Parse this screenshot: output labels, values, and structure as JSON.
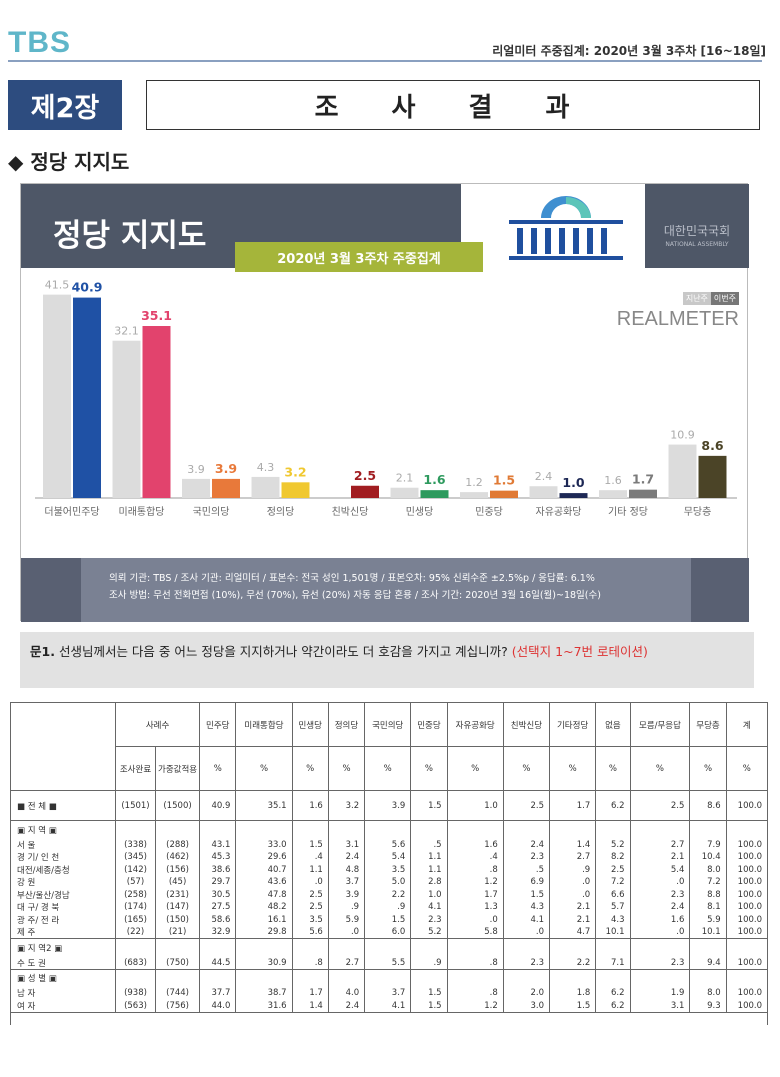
{
  "header": {
    "logo": "TBS",
    "survey_info": "리얼미터 주중집계: 2020년 3월 3주차 [16~18일]"
  },
  "chapter": {
    "number": "제2장",
    "title": "조 사 결 과"
  },
  "section_title": "◆ 정당 지지도",
  "panel": {
    "title": "정당 지지도",
    "subtitle": "2020년 3월 3주차 주중집계",
    "assembly_name": "대한민국국회",
    "assembly_name_en": "NATIONAL ASSEMBLY",
    "legend_prev": "지난주",
    "legend_curr": "이번주",
    "brand": "REALMETER",
    "footer_line1": "의뢰 기관: TBS / 조사 기관: 리얼미터 / 표본수: 전국 성인 1,501명 / 표본오차: 95% 신뢰수준 ±2.5%p / 응답률: 6.1%",
    "footer_line2": "조사 방법: 무선 전화면접 (10%), 무선 (70%), 유선 (20%) 자동 응답 혼용 / 조사 기간: 2020년 3월 16일(월)~18일(수)"
  },
  "chart_data": {
    "type": "bar",
    "categories": [
      "더불어민주당",
      "미래통합당",
      "국민의당",
      "정의당",
      "친박신당",
      "민생당",
      "민중당",
      "자유공화당",
      "기타 정당",
      "무당층"
    ],
    "series": [
      {
        "name": "지난주",
        "values": [
          41.5,
          32.1,
          3.9,
          4.3,
          null,
          2.1,
          1.2,
          2.4,
          1.6,
          10.9
        ]
      },
      {
        "name": "이번주",
        "values": [
          40.9,
          35.1,
          3.9,
          3.2,
          2.5,
          1.6,
          1.5,
          1.0,
          1.7,
          8.6
        ]
      }
    ],
    "colors": [
      "#1f51a5",
      "#e2436d",
      "#e8793a",
      "#f0c830",
      "#a11d21",
      "#2e9a5e",
      "#e07a35",
      "#1d2855",
      "#7a7a7a",
      "#4b4427"
    ],
    "ylim": [
      0,
      45
    ]
  },
  "question": {
    "prefix": "문1.",
    "text": "선생님께서는 다음 중 어느 정당을 지지하거나 약간이라도 더 호감을 가지고 계십니까?",
    "note": "(선택지 1~7번 로테이션)"
  },
  "table": {
    "header_sample": "사례수",
    "header_sample_sub": [
      "조사완료",
      "가중값적용"
    ],
    "columns": [
      "민주당",
      "미래통합당",
      "민생당",
      "정의당",
      "국민의당",
      "민중당",
      "자유공화당",
      "친박신당",
      "기타정당",
      "없음",
      "모름/무응답",
      "무당층",
      "계"
    ],
    "unit": "%",
    "groups": [
      {
        "title": "■ 전 체 ■",
        "rows": [
          {
            "label": "",
            "n": [
              "(1501)",
              "(1500)"
            ],
            "v": [
              "40.9",
              "35.1",
              "1.6",
              "3.2",
              "3.9",
              "1.5",
              "1.0",
              "2.5",
              "1.7",
              "6.2",
              "2.5",
              "8.6",
              "100.0"
            ]
          }
        ],
        "total": true
      },
      {
        "title": "▣ 지 역 ▣",
        "rows": [
          {
            "label": "서 울",
            "n": [
              "(338)",
              "(288)"
            ],
            "v": [
              "43.1",
              "33.0",
              "1.5",
              "3.1",
              "5.6",
              ".5",
              "1.6",
              "2.4",
              "1.4",
              "5.2",
              "2.7",
              "7.9",
              "100.0"
            ]
          },
          {
            "label": "경 기/ 인 천",
            "n": [
              "(345)",
              "(462)"
            ],
            "v": [
              "45.3",
              "29.6",
              ".4",
              "2.4",
              "5.4",
              "1.1",
              ".4",
              "2.3",
              "2.7",
              "8.2",
              "2.1",
              "10.4",
              "100.0"
            ]
          },
          {
            "label": "대전/세종/충청",
            "n": [
              "(142)",
              "(156)"
            ],
            "v": [
              "38.6",
              "40.7",
              "1.1",
              "4.8",
              "3.5",
              "1.1",
              ".8",
              ".5",
              ".9",
              "2.5",
              "5.4",
              "8.0",
              "100.0"
            ]
          },
          {
            "label": "강 원",
            "n": [
              "(57)",
              "(45)"
            ],
            "v": [
              "29.7",
              "43.6",
              ".0",
              "3.7",
              "5.0",
              "2.8",
              "1.2",
              "6.9",
              ".0",
              "7.2",
              ".0",
              "7.2",
              "100.0"
            ]
          },
          {
            "label": "부산/울산/경남",
            "n": [
              "(258)",
              "(231)"
            ],
            "v": [
              "30.5",
              "47.8",
              "2.5",
              "3.9",
              "2.2",
              "1.0",
              "1.7",
              "1.5",
              ".0",
              "6.6",
              "2.3",
              "8.8",
              "100.0"
            ]
          },
          {
            "label": "대 구/ 경 북",
            "n": [
              "(174)",
              "(147)"
            ],
            "v": [
              "27.5",
              "48.2",
              "2.5",
              ".9",
              ".9",
              "4.1",
              "1.3",
              "4.3",
              "2.1",
              "5.7",
              "2.4",
              "8.1",
              "100.0"
            ]
          },
          {
            "label": "광 주/ 전 라",
            "n": [
              "(165)",
              "(150)"
            ],
            "v": [
              "58.6",
              "16.1",
              "3.5",
              "5.9",
              "1.5",
              "2.3",
              ".0",
              "4.1",
              "2.1",
              "4.3",
              "1.6",
              "5.9",
              "100.0"
            ]
          },
          {
            "label": "제 주",
            "n": [
              "(22)",
              "(21)"
            ],
            "v": [
              "32.9",
              "29.8",
              "5.6",
              ".0",
              "6.0",
              "5.2",
              "5.8",
              ".0",
              "4.7",
              "10.1",
              ".0",
              "10.1",
              "100.0"
            ]
          }
        ]
      },
      {
        "title": "▣ 지 역2 ▣",
        "rows": [
          {
            "label": "수 도 권",
            "n": [
              "(683)",
              "(750)"
            ],
            "v": [
              "44.5",
              "30.9",
              ".8",
              "2.7",
              "5.5",
              ".9",
              ".8",
              "2.3",
              "2.2",
              "7.1",
              "2.3",
              "9.4",
              "100.0"
            ]
          }
        ]
      },
      {
        "title": "▣ 성 별 ▣",
        "rows": [
          {
            "label": "남 자",
            "n": [
              "(938)",
              "(744)"
            ],
            "v": [
              "37.7",
              "38.7",
              "1.7",
              "4.0",
              "3.7",
              "1.5",
              ".8",
              "2.0",
              "1.8",
              "6.2",
              "1.9",
              "8.0",
              "100.0"
            ]
          },
          {
            "label": "여 자",
            "n": [
              "(563)",
              "(756)"
            ],
            "v": [
              "44.0",
              "31.6",
              "1.4",
              "2.4",
              "4.1",
              "1.5",
              "1.2",
              "3.0",
              "1.5",
              "6.2",
              "3.1",
              "9.3",
              "100.0"
            ]
          }
        ]
      }
    ]
  }
}
